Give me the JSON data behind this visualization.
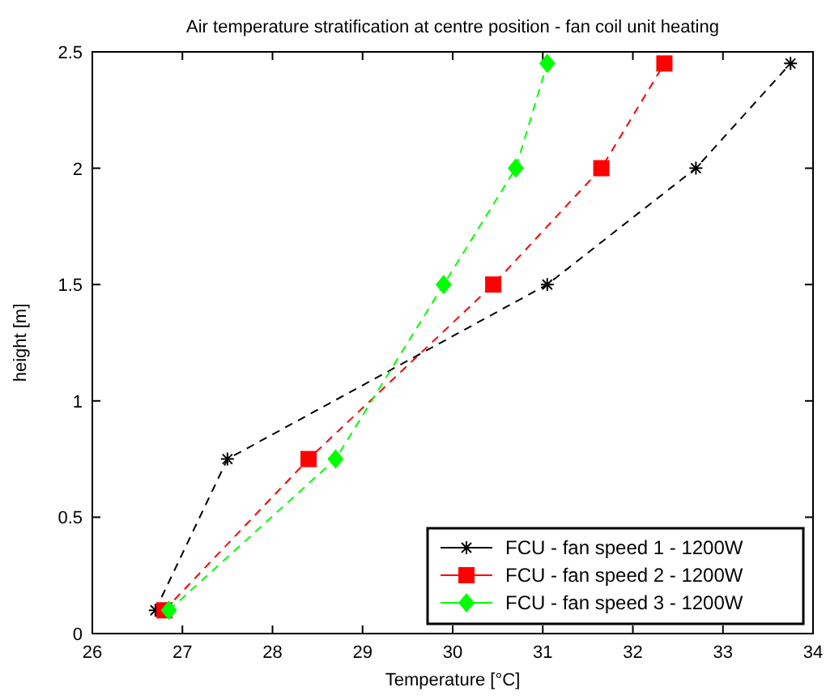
{
  "chart_data": {
    "type": "line",
    "title": "Air temperature stratification at centre position - fan coil unit heating",
    "xlabel": "Temperature [°C]",
    "ylabel": "height [m]",
    "xlim": [
      26,
      34
    ],
    "xticks": [
      26,
      27,
      28,
      29,
      30,
      31,
      32,
      33,
      34
    ],
    "ylim": [
      0,
      2.5
    ],
    "yticks": [
      0,
      0.5,
      1,
      1.5,
      2,
      2.5
    ],
    "line_style": "dashed",
    "legend": "bottom right",
    "grid": false,
    "series": [
      {
        "name": "FCU - fan speed 1 - 1200W",
        "color": "#000000",
        "marker": "cross",
        "x": [
          26.7,
          27.5,
          31.05,
          32.7,
          33.75
        ],
        "values": [
          0.1,
          0.75,
          1.5,
          2.0,
          2.45
        ]
      },
      {
        "name": "FCU - fan speed 2 - 1200W",
        "color": "#ff0000",
        "marker": "square",
        "x": [
          26.8,
          28.4,
          30.45,
          31.65,
          32.35
        ],
        "values": [
          0.1,
          0.75,
          1.5,
          2.0,
          2.45
        ]
      },
      {
        "name": "FCU - fan speed 3 - 1200W",
        "color": "#00ff00",
        "marker": "diamond",
        "x": [
          26.85,
          28.7,
          29.9,
          30.7,
          31.05
        ],
        "values": [
          0.1,
          0.75,
          1.5,
          2.0,
          2.45
        ]
      }
    ]
  }
}
